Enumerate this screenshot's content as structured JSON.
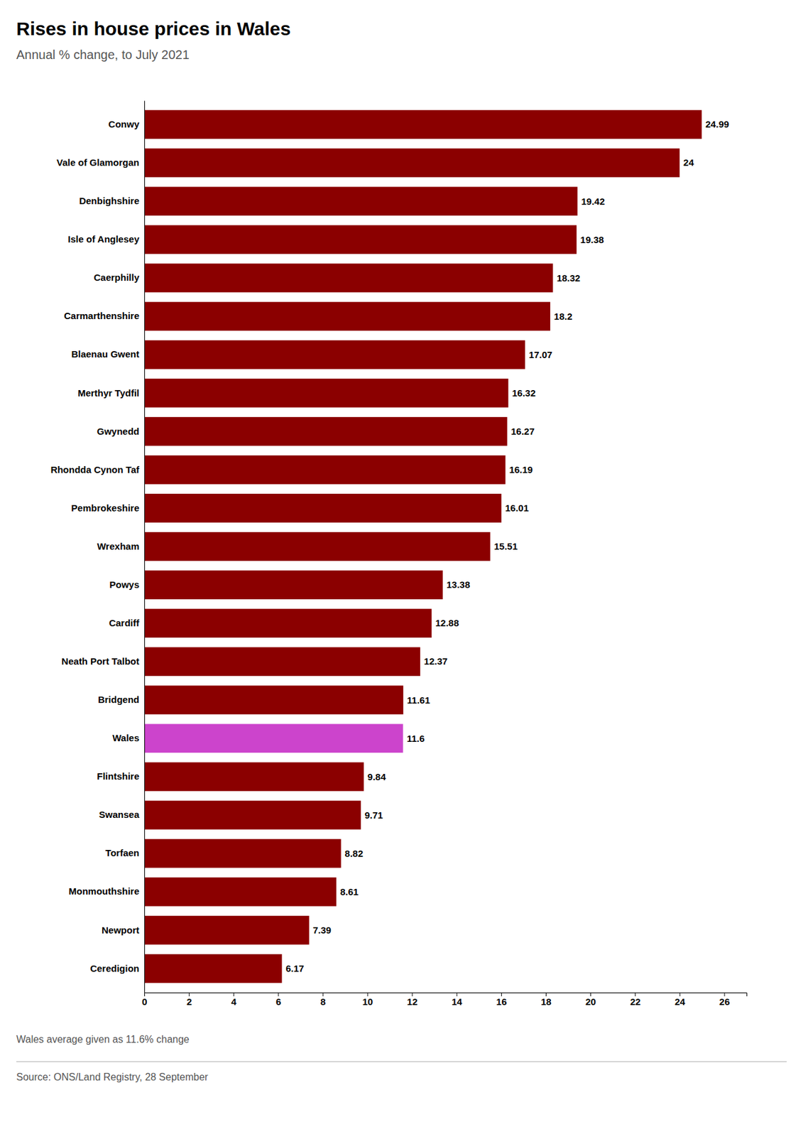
{
  "chart_data": {
    "type": "bar",
    "orientation": "horizontal",
    "title": "Rises in house prices in Wales",
    "subtitle": "Annual % change, to July 2021",
    "footnote": "Wales average given as 11.6% change",
    "source": "Source: ONS/Land Registry, 28 September",
    "categories": [
      "Conwy",
      "Vale of Glamorgan",
      "Denbighshire",
      "Isle of Anglesey",
      "Caerphilly",
      "Carmarthenshire",
      "Blaenau Gwent",
      "Merthyr Tydfil",
      "Gwynedd",
      "Rhondda Cynon Taf",
      "Pembrokeshire",
      "Wrexham",
      "Powys",
      "Cardiff",
      "Neath Port Talbot",
      "Bridgend",
      "Wales",
      "Flintshire",
      "Swansea",
      "Torfaen",
      "Monmouthshire",
      "Newport",
      "Ceredigion"
    ],
    "values": [
      24.99,
      24,
      19.42,
      19.38,
      18.32,
      18.2,
      17.07,
      16.32,
      16.27,
      16.19,
      16.01,
      15.51,
      13.38,
      12.88,
      12.37,
      11.61,
      11.6,
      9.84,
      9.71,
      8.82,
      8.61,
      7.39,
      6.17
    ],
    "colors": [
      "#8B0000",
      "#8B0000",
      "#8B0000",
      "#8B0000",
      "#8B0000",
      "#8B0000",
      "#8B0000",
      "#8B0000",
      "#8B0000",
      "#8B0000",
      "#8B0000",
      "#8B0000",
      "#8B0000",
      "#8B0000",
      "#8B0000",
      "#8B0000",
      "#CC44CC",
      "#8B0000",
      "#8B0000",
      "#8B0000",
      "#8B0000",
      "#8B0000",
      "#8B0000"
    ],
    "xlim": [
      0,
      27
    ],
    "xticks": [
      0,
      2,
      4,
      6,
      8,
      10,
      12,
      14,
      16,
      18,
      20,
      22,
      24,
      26
    ],
    "data_labels": true,
    "grid": false
  }
}
